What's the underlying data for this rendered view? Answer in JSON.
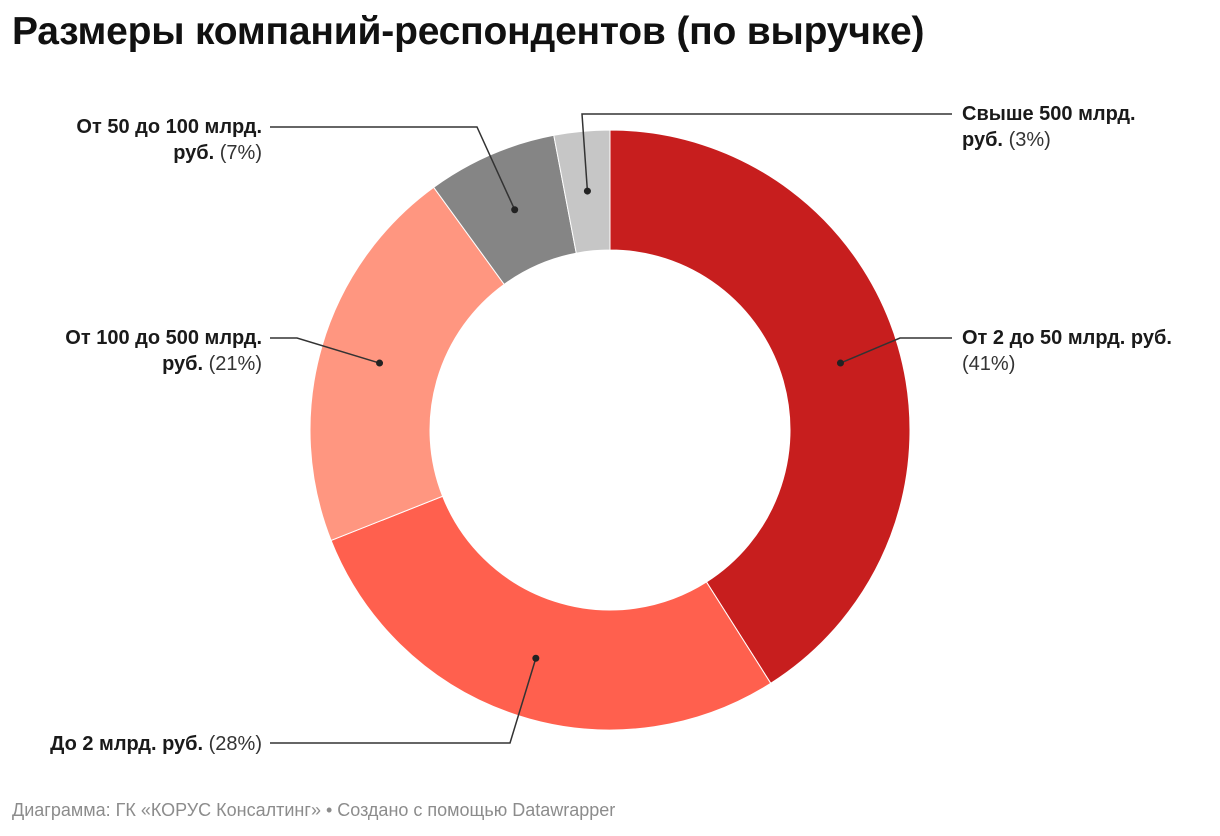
{
  "title": "Размеры компаний-респондентов (по выручке)",
  "footer": {
    "source_prefix": "Диаграмма: ",
    "source": "ГК «КОРУС Консалтинг»",
    "separator": " • ",
    "credit": "Создано с помощью Datawrapper"
  },
  "chart_data": {
    "type": "pie",
    "variant": "donut",
    "start_angle_deg": 0,
    "direction": "clockwise",
    "slices": [
      {
        "label_line1": "От 2 до 50 млрд. руб.",
        "label_line2": "",
        "value": 41,
        "value_text": "(41%)",
        "color": "#c71e1e"
      },
      {
        "label_line1": "До 2 млрд. руб.",
        "label_line2": "",
        "value": 28,
        "value_text": "(28%)",
        "color": "#ff604e"
      },
      {
        "label_line1": "От 100 до 500 млрд.",
        "label_line2": "руб.",
        "value": 21,
        "value_text": "(21%)",
        "color": "#ff9680"
      },
      {
        "label_line1": "От 50 до 100 млрд.",
        "label_line2": "руб.",
        "value": 7,
        "value_text": "(7%)",
        "color": "#858585"
      },
      {
        "label_line1": "Свыше 500 млрд.",
        "label_line2": "руб.",
        "value": 3,
        "value_text": "(3%)",
        "color": "#c6c6c6"
      }
    ]
  }
}
